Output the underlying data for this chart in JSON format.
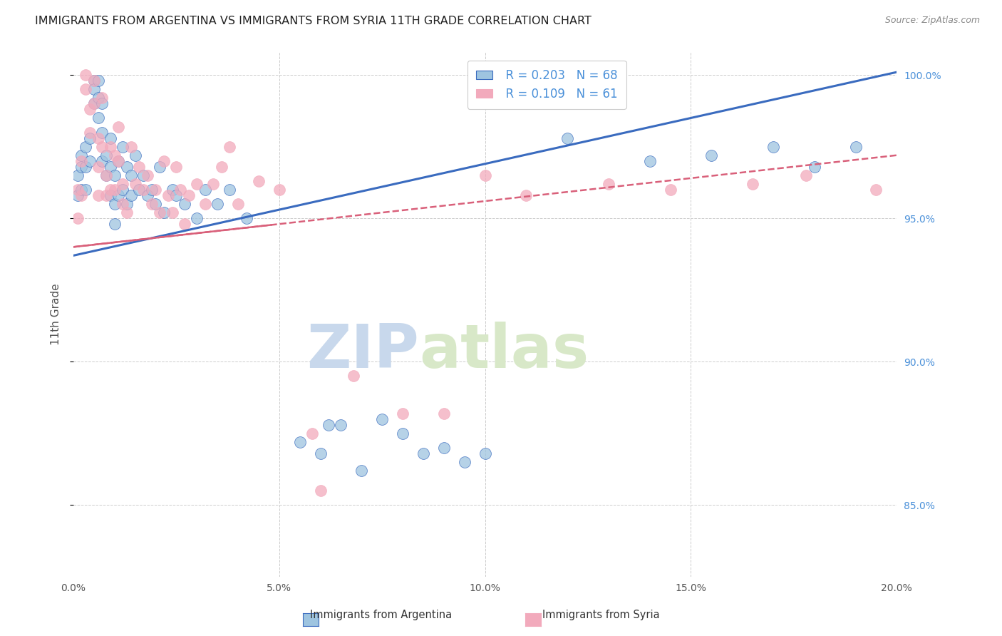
{
  "title": "IMMIGRANTS FROM ARGENTINA VS IMMIGRANTS FROM SYRIA 11TH GRADE CORRELATION CHART",
  "source": "Source: ZipAtlas.com",
  "ylabel": "11th Grade",
  "y_ticks_right": [
    "85.0%",
    "90.0%",
    "95.0%",
    "100.0%"
  ],
  "xlim": [
    0.0,
    0.2
  ],
  "ylim": [
    0.825,
    1.008
  ],
  "legend_label1": "Immigrants from Argentina",
  "legend_label2": "Immigrants from Syria",
  "color_argentina": "#9ec4e0",
  "color_syria": "#f2aabc",
  "color_line_argentina": "#3a6bbf",
  "color_line_syria": "#d9607a",
  "watermark_zip": "ZIP",
  "watermark_atlas": "atlas",
  "arg_intercept": 0.937,
  "arg_slope": 0.32,
  "syr_intercept": 0.94,
  "syr_slope": 0.16,
  "argentina_x": [
    0.001,
    0.001,
    0.002,
    0.002,
    0.002,
    0.003,
    0.003,
    0.003,
    0.004,
    0.004,
    0.005,
    0.005,
    0.005,
    0.006,
    0.006,
    0.006,
    0.007,
    0.007,
    0.007,
    0.008,
    0.008,
    0.009,
    0.009,
    0.009,
    0.01,
    0.01,
    0.01,
    0.011,
    0.011,
    0.012,
    0.012,
    0.013,
    0.013,
    0.014,
    0.014,
    0.015,
    0.016,
    0.017,
    0.018,
    0.019,
    0.02,
    0.021,
    0.022,
    0.024,
    0.025,
    0.027,
    0.03,
    0.032,
    0.035,
    0.038,
    0.042,
    0.055,
    0.06,
    0.062,
    0.065,
    0.07,
    0.075,
    0.08,
    0.085,
    0.09,
    0.095,
    0.1,
    0.12,
    0.14,
    0.155,
    0.17,
    0.18,
    0.19
  ],
  "argentina_y": [
    0.965,
    0.958,
    0.972,
    0.96,
    0.968,
    0.975,
    0.968,
    0.96,
    0.978,
    0.97,
    0.998,
    0.995,
    0.99,
    0.985,
    0.998,
    0.992,
    0.98,
    0.99,
    0.97,
    0.972,
    0.965,
    0.978,
    0.968,
    0.958,
    0.965,
    0.955,
    0.948,
    0.97,
    0.958,
    0.975,
    0.96,
    0.968,
    0.955,
    0.965,
    0.958,
    0.972,
    0.96,
    0.965,
    0.958,
    0.96,
    0.955,
    0.968,
    0.952,
    0.96,
    0.958,
    0.955,
    0.95,
    0.96,
    0.955,
    0.96,
    0.95,
    0.872,
    0.868,
    0.878,
    0.878,
    0.862,
    0.88,
    0.875,
    0.868,
    0.87,
    0.865,
    0.868,
    0.978,
    0.97,
    0.972,
    0.975,
    0.968,
    0.975
  ],
  "syria_x": [
    0.001,
    0.001,
    0.002,
    0.002,
    0.003,
    0.003,
    0.004,
    0.004,
    0.005,
    0.005,
    0.006,
    0.006,
    0.006,
    0.007,
    0.007,
    0.008,
    0.008,
    0.009,
    0.009,
    0.01,
    0.01,
    0.011,
    0.011,
    0.012,
    0.012,
    0.013,
    0.014,
    0.015,
    0.016,
    0.017,
    0.018,
    0.019,
    0.02,
    0.021,
    0.022,
    0.023,
    0.024,
    0.025,
    0.026,
    0.027,
    0.028,
    0.03,
    0.032,
    0.034,
    0.036,
    0.038,
    0.04,
    0.045,
    0.05,
    0.058,
    0.06,
    0.068,
    0.08,
    0.09,
    0.1,
    0.11,
    0.13,
    0.145,
    0.165,
    0.178,
    0.195
  ],
  "syria_y": [
    0.96,
    0.95,
    0.97,
    0.958,
    1.0,
    0.995,
    0.988,
    0.98,
    0.998,
    0.99,
    0.978,
    0.968,
    0.958,
    0.992,
    0.975,
    0.965,
    0.958,
    0.975,
    0.96,
    0.972,
    0.96,
    0.982,
    0.97,
    0.962,
    0.955,
    0.952,
    0.975,
    0.962,
    0.968,
    0.96,
    0.965,
    0.955,
    0.96,
    0.952,
    0.97,
    0.958,
    0.952,
    0.968,
    0.96,
    0.948,
    0.958,
    0.962,
    0.955,
    0.962,
    0.968,
    0.975,
    0.955,
    0.963,
    0.96,
    0.875,
    0.855,
    0.895,
    0.882,
    0.882,
    0.965,
    0.958,
    0.962,
    0.96,
    0.962,
    0.965,
    0.96
  ]
}
